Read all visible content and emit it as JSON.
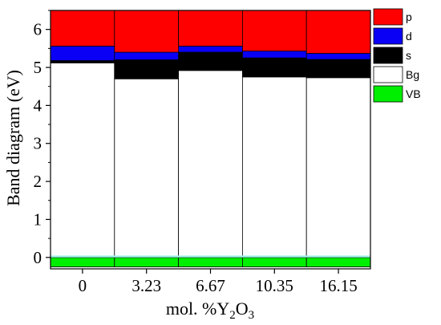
{
  "chart_data": {
    "type": "bar",
    "stacked": true,
    "categories": [
      "0",
      "3.23",
      "6.67",
      "10.35",
      "16.15"
    ],
    "series": [
      {
        "name": "VB",
        "color": "#00ee00",
        "values": [
          -0.25,
          -0.25,
          -0.25,
          -0.25,
          -0.25
        ],
        "tops": [
          0.0,
          0.0,
          0.0,
          0.0,
          0.0
        ]
      },
      {
        "name": "Bg",
        "color": "#ffffff",
        "values": [
          5.12,
          4.7,
          4.92,
          4.75,
          4.73
        ],
        "bottoms": [
          0.0,
          0.0,
          0.0,
          0.0,
          0.0
        ]
      },
      {
        "name": "s",
        "color": "#000000",
        "values": [
          0.06,
          0.5,
          0.48,
          0.5,
          0.48
        ],
        "bottoms": [
          5.12,
          4.7,
          4.92,
          4.75,
          4.73
        ]
      },
      {
        "name": "d",
        "color": "#0a00f5",
        "values": [
          0.38,
          0.2,
          0.16,
          0.18,
          0.16
        ],
        "bottoms": [
          5.18,
          5.2,
          5.4,
          5.25,
          5.21
        ]
      },
      {
        "name": "p",
        "color": "#ff0000",
        "values": [
          0.94,
          1.1,
          0.94,
          1.07,
          1.13
        ],
        "bottoms": [
          5.56,
          5.4,
          5.56,
          5.43,
          5.37
        ]
      }
    ],
    "vb_band_top": 0.05,
    "vb_highlight_color": "#a0f0e8",
    "xlabel": "mol. %Y",
    "xlabel_sub1": "2",
    "xlabel_mid": "O",
    "xlabel_sub2": "3",
    "ylabel": "Band diagram (eV)",
    "ylim": [
      -0.3,
      6.5
    ],
    "yticks": [
      "0",
      "1",
      "2",
      "3",
      "4",
      "5",
      "6"
    ],
    "legend_position": "right-top",
    "legend_order": [
      "p",
      "d",
      "s",
      "Bg",
      "VB"
    ]
  }
}
